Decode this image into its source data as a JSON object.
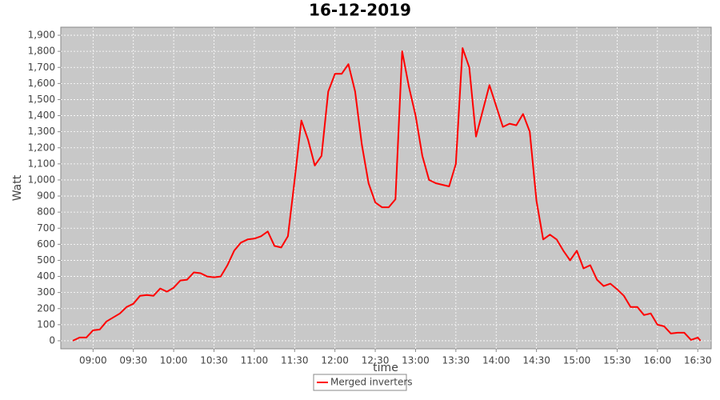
{
  "chart_data": {
    "type": "line",
    "title": "16-12-2019",
    "x_label": "time",
    "y_label": "Watt",
    "x": [
      "08:45",
      "08:50",
      "08:55",
      "09:00",
      "09:05",
      "09:10",
      "09:15",
      "09:20",
      "09:25",
      "09:30",
      "09:35",
      "09:40",
      "09:45",
      "09:50",
      "09:55",
      "10:00",
      "10:05",
      "10:10",
      "10:15",
      "10:20",
      "10:25",
      "10:30",
      "10:35",
      "10:40",
      "10:45",
      "10:50",
      "10:55",
      "11:00",
      "11:05",
      "11:10",
      "11:15",
      "11:20",
      "11:25",
      "11:30",
      "11:35",
      "11:40",
      "11:45",
      "11:50",
      "11:55",
      "12:00",
      "12:05",
      "12:10",
      "12:15",
      "12:20",
      "12:25",
      "12:30",
      "12:35",
      "12:40",
      "12:45",
      "12:50",
      "12:55",
      "13:00",
      "13:05",
      "13:10",
      "13:15",
      "13:20",
      "13:25",
      "13:30",
      "13:35",
      "13:40",
      "13:45",
      "13:50",
      "13:55",
      "14:00",
      "14:05",
      "14:10",
      "14:15",
      "14:20",
      "14:25",
      "14:30",
      "14:35",
      "14:40",
      "14:45",
      "14:50",
      "14:55",
      "15:00",
      "15:05",
      "15:10",
      "15:15",
      "15:20",
      "15:25",
      "15:30",
      "15:35",
      "15:40",
      "15:45",
      "15:50",
      "15:55",
      "16:00",
      "16:05",
      "16:10",
      "16:15",
      "16:20",
      "16:25",
      "16:30",
      "16:32"
    ],
    "series": [
      {
        "name": "Merged inverters",
        "color": "#ff0000",
        "values": [
          0,
          20,
          20,
          65,
          70,
          120,
          145,
          170,
          210,
          230,
          280,
          285,
          280,
          325,
          305,
          330,
          375,
          380,
          425,
          420,
          400,
          395,
          400,
          470,
          560,
          610,
          630,
          635,
          650,
          680,
          590,
          580,
          650,
          1000,
          1370,
          1250,
          1090,
          1150,
          1550,
          1660,
          1660,
          1720,
          1550,
          1220,
          980,
          860,
          830,
          830,
          880,
          1800,
          1580,
          1400,
          1150,
          1000,
          980,
          970,
          960,
          1100,
          1820,
          1700,
          1270,
          1430,
          1590,
          1460,
          1330,
          1350,
          1340,
          1410,
          1300,
          870,
          630,
          660,
          630,
          560,
          500,
          560,
          450,
          470,
          380,
          340,
          355,
          320,
          280,
          210,
          210,
          160,
          170,
          100,
          90,
          45,
          50,
          50,
          5,
          20,
          0
        ]
      }
    ],
    "xlim": [
      "08:36",
      "16:40"
    ],
    "xticks": [
      "09:00",
      "09:30",
      "10:00",
      "10:30",
      "11:00",
      "11:30",
      "12:00",
      "12:30",
      "13:00",
      "13:30",
      "14:00",
      "14:30",
      "15:00",
      "15:30",
      "16:00",
      "16:30"
    ],
    "ylim": [
      -50,
      1950
    ],
    "yticks": [
      0,
      100,
      200,
      300,
      400,
      500,
      600,
      700,
      800,
      900,
      {
        "value": 1000,
        "label": "1,000"
      },
      {
        "value": 1100,
        "label": "1,100"
      },
      {
        "value": 1200,
        "label": "1,200"
      },
      {
        "value": 1300,
        "label": "1,300"
      },
      {
        "value": 1400,
        "label": "1,400"
      },
      {
        "value": 1500,
        "label": "1,500"
      },
      {
        "value": 1600,
        "label": "1,600"
      },
      {
        "value": 1700,
        "label": "1,700"
      },
      {
        "value": 1800,
        "label": "1,800"
      },
      {
        "value": 1900,
        "label": "1,900"
      }
    ],
    "grid": true
  }
}
